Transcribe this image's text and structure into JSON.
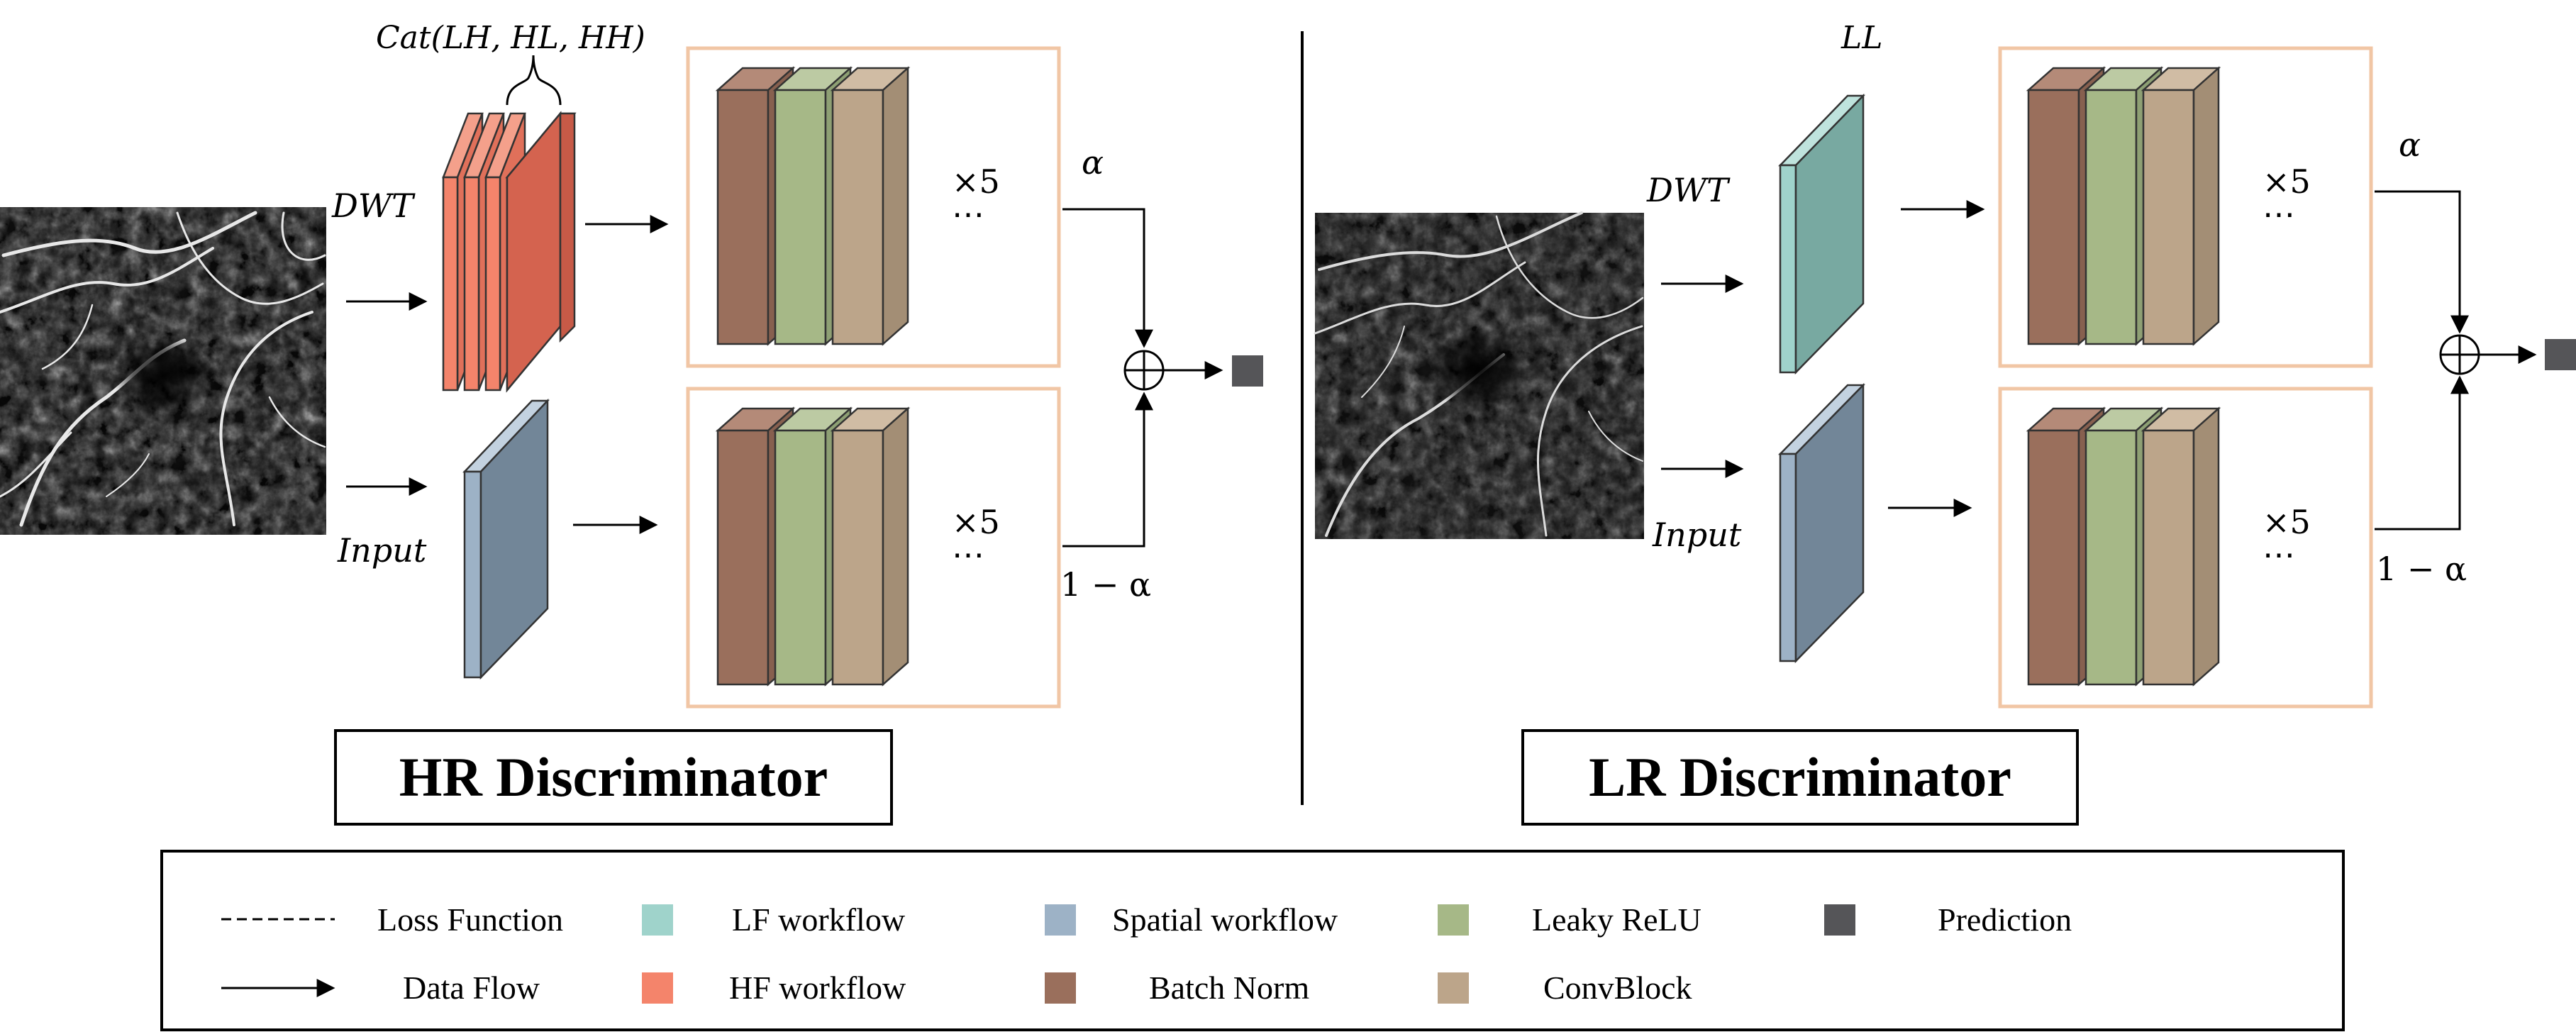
{
  "colors": {
    "lf": "#9fd3cb",
    "hf": "#f4846b",
    "spatial": "#9db2c6",
    "leaky_relu": "#a6b887",
    "batch_norm": "#9a6f5c",
    "conv_block": "#bca58a",
    "prediction": "#555558",
    "frame": "#f1c6a5",
    "ll_block": "#78a9a1",
    "hf_block": "#d4634f",
    "input_block": "#728698"
  },
  "hr": {
    "title": "HR Discriminator",
    "cat_label": "Cat(LH, HL, HH)",
    "dwt_label": "DWT",
    "input_label": "Input",
    "repeat_top": "×5",
    "repeat_bottom": "×5",
    "ellipsis_top": "⋯",
    "ellipsis_bottom": "⋯",
    "alpha": "α",
    "one_minus_alpha": "1 − α"
  },
  "lr": {
    "title": "LR Discriminator",
    "ll_label": "LL",
    "dwt_label": "DWT",
    "input_label": "Input",
    "repeat_top": "×5",
    "repeat_bottom": "×5",
    "ellipsis_top": "⋯",
    "ellipsis_bottom": "⋯",
    "alpha": "α",
    "one_minus_alpha": "1 − α"
  },
  "legend": {
    "loss_function": "Loss Function",
    "data_flow": "Data Flow",
    "lf_workflow": "LF workflow",
    "hf_workflow": "HF workflow",
    "spatial_workflow": "Spatial workflow",
    "batch_norm": "Batch Norm",
    "leaky_relu": "Leaky ReLU",
    "conv_block": "ConvBlock",
    "prediction": "Prediction"
  }
}
